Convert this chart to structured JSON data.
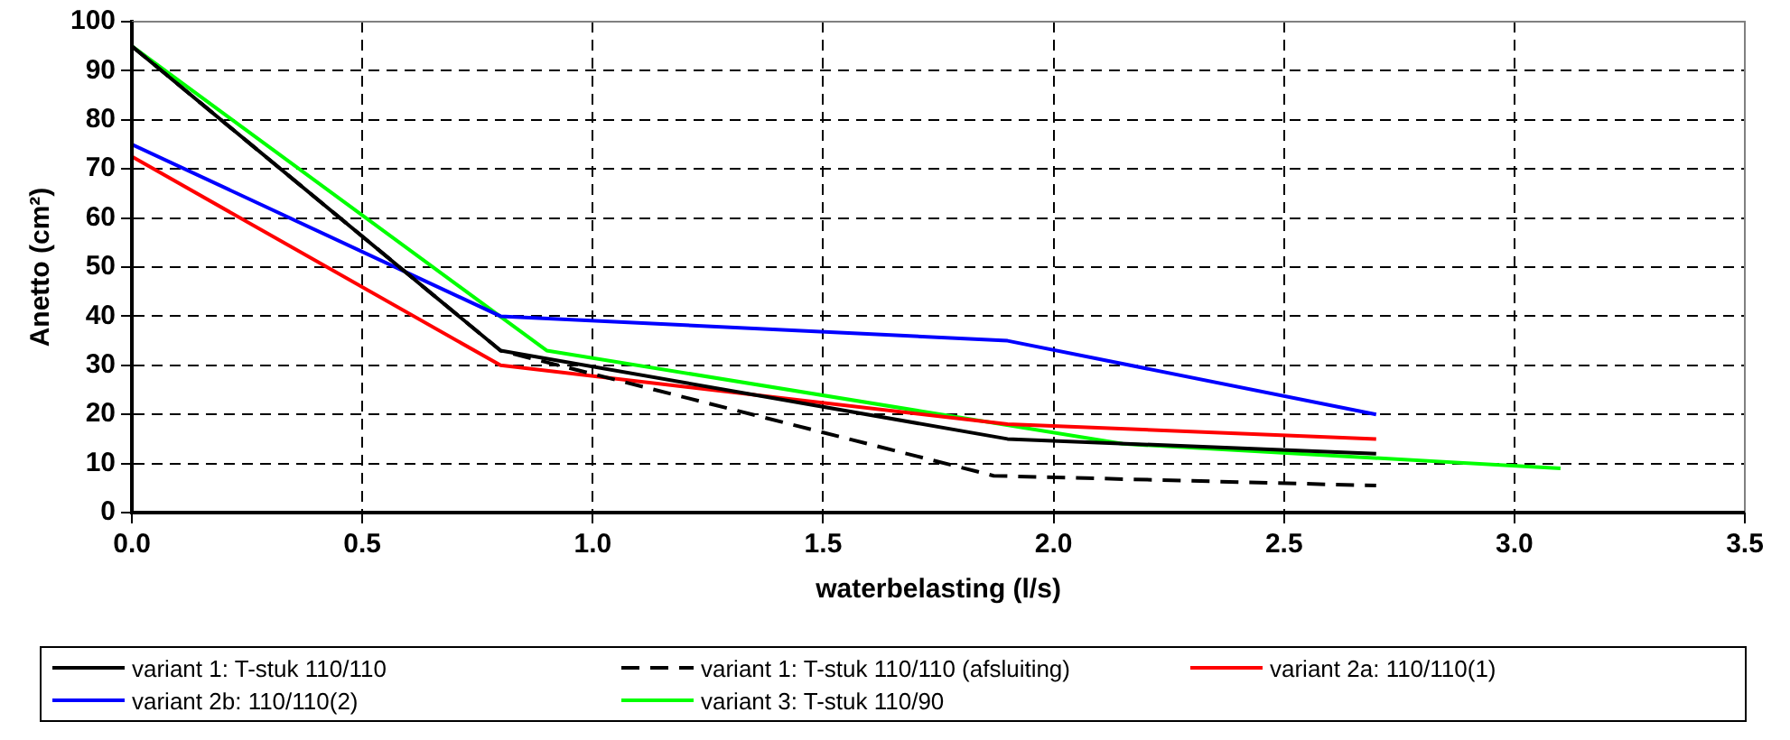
{
  "chart_data": {
    "type": "line",
    "xlabel": "waterbelasting (l/s)",
    "ylabel": "Anetto (cm²)",
    "xlim": [
      0,
      3.5
    ],
    "xticks": [
      {
        "value": 0,
        "label": "0.0"
      },
      {
        "value": 0.5,
        "label": "0.5"
      },
      {
        "value": 1,
        "label": "1.0"
      },
      {
        "value": 1.5,
        "label": "1.5"
      },
      {
        "value": 2,
        "label": "2.0"
      },
      {
        "value": 2.5,
        "label": "2.5"
      },
      {
        "value": 3,
        "label": "3.0"
      },
      {
        "value": 3.5,
        "label": "3.5"
      }
    ],
    "ylim": [
      0,
      100
    ],
    "yticks": [
      0,
      10,
      20,
      30,
      40,
      50,
      60,
      70,
      80,
      90,
      100
    ],
    "grid": true,
    "legend": "bottom",
    "marker": "none",
    "series": [
      {
        "name": "variant 1: T-stuk 110/110",
        "color": "#000000",
        "x": [
          0,
          0.8,
          1.9,
          2.7
        ],
        "values": [
          95,
          33,
          15,
          12
        ]
      },
      {
        "name": "variant 1: T-stuk 110/110 (afsluiting)",
        "color": "#000000",
        "line_style": "dashed",
        "x": [
          0,
          0.8,
          1.87,
          2.7
        ],
        "values": [
          95,
          33,
          7.5,
          5.5
        ]
      },
      {
        "name": "variant 2a: 110/110(1)",
        "color": "#ff0000",
        "x": [
          0,
          0.8,
          1.9,
          2.7
        ],
        "values": [
          72.5,
          30,
          18,
          15
        ]
      },
      {
        "name": "variant 2b: 110/110(2)",
        "color": "#0000ff",
        "x": [
          0,
          0.8,
          1.9,
          2.7
        ],
        "values": [
          75,
          40,
          35,
          20
        ]
      },
      {
        "name": "variant 3: T-stuk 110/90",
        "color": "#00ff00",
        "x": [
          0,
          0.9,
          2.15,
          3.1
        ],
        "values": [
          95,
          33,
          14,
          9
        ]
      }
    ]
  }
}
